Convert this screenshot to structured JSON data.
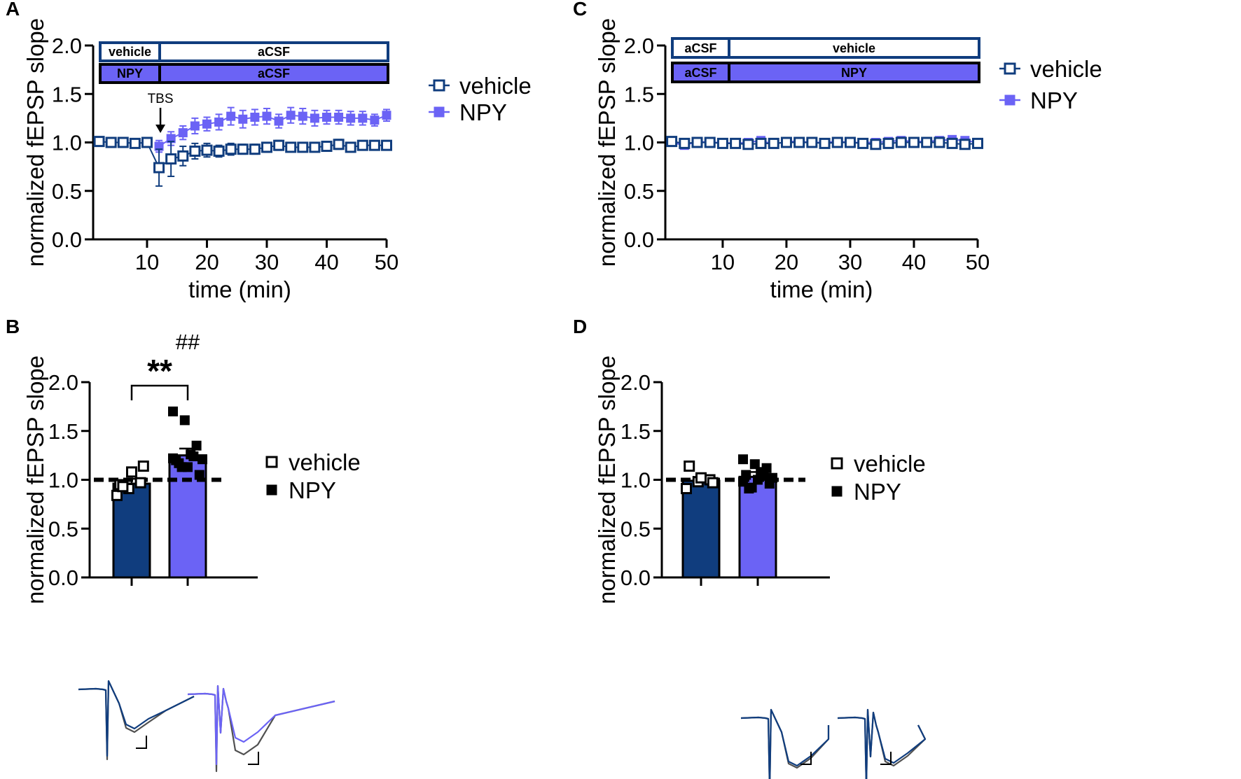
{
  "colors": {
    "vehicle": "#103d7e",
    "npy": "#6b63f5",
    "black": "#000000",
    "trace_grey": "#505050"
  },
  "chart_data": [
    {
      "id": "A",
      "panel_label": "A",
      "type": "line",
      "ylabel": "normalized fEPSP slope",
      "xlabel": "time (min)",
      "xlim": [
        1,
        50
      ],
      "ylim": [
        0,
        2.0
      ],
      "xticks": [
        10,
        20,
        30,
        40,
        50
      ],
      "yticks": [
        "0.0",
        "0.5",
        "1.0",
        "1.5",
        "2.0"
      ],
      "protocol_bars": [
        {
          "style": "open",
          "segments": [
            "vehicle",
            "aCSF"
          ]
        },
        {
          "style": "filled",
          "segments": [
            "NPY",
            "aCSF"
          ]
        }
      ],
      "protocol_split_x": 10.5,
      "annotation": {
        "text": "TBS",
        "x": 12
      },
      "legend": [
        "vehicle",
        "NPY"
      ],
      "series": [
        {
          "name": "vehicle",
          "marker": "open-square",
          "x": [
            2,
            4,
            6,
            8,
            10,
            12,
            14,
            16,
            18,
            20,
            22,
            24,
            26,
            28,
            30,
            32,
            34,
            36,
            38,
            40,
            42,
            44,
            46,
            48,
            50
          ],
          "y": [
            1.01,
            1.0,
            1.0,
            0.99,
            1.0,
            0.74,
            0.83,
            0.86,
            0.91,
            0.92,
            0.91,
            0.93,
            0.93,
            0.93,
            0.95,
            0.97,
            0.95,
            0.95,
            0.95,
            0.96,
            0.98,
            0.95,
            0.97,
            0.97,
            0.97
          ],
          "err": [
            0.02,
            0.02,
            0.02,
            0.02,
            0.02,
            0.19,
            0.18,
            0.1,
            0.08,
            0.07,
            0.06,
            0.06,
            0.05,
            0.05,
            0.05,
            0.05,
            0.04,
            0.04,
            0.04,
            0.04,
            0.05,
            0.04,
            0.04,
            0.04,
            0.04
          ]
        },
        {
          "name": "NPY",
          "marker": "filled-square",
          "x": [
            12,
            14,
            16,
            18,
            20,
            22,
            24,
            26,
            28,
            30,
            32,
            34,
            36,
            38,
            40,
            42,
            44,
            46,
            48,
            50
          ],
          "y": [
            0.96,
            1.04,
            1.1,
            1.17,
            1.19,
            1.21,
            1.27,
            1.24,
            1.26,
            1.27,
            1.22,
            1.28,
            1.27,
            1.25,
            1.26,
            1.26,
            1.25,
            1.25,
            1.23,
            1.28
          ],
          "err": [
            0.06,
            0.07,
            0.07,
            0.08,
            0.07,
            0.08,
            0.09,
            0.09,
            0.08,
            0.08,
            0.07,
            0.08,
            0.08,
            0.08,
            0.07,
            0.07,
            0.07,
            0.07,
            0.06,
            0.06
          ]
        }
      ]
    },
    {
      "id": "C",
      "panel_label": "C",
      "type": "line",
      "ylabel": "normalized fEPSP slope",
      "xlabel": "time (min)",
      "xlim": [
        1,
        50
      ],
      "ylim": [
        0,
        2.0
      ],
      "xticks": [
        10,
        20,
        30,
        40,
        50
      ],
      "yticks": [
        "0.0",
        "0.5",
        "1.0",
        "1.5",
        "2.0"
      ],
      "protocol_bars": [
        {
          "style": "open",
          "segments": [
            "aCSF",
            "vehicle"
          ]
        },
        {
          "style": "filled",
          "segments": [
            "aCSF",
            "NPY"
          ]
        }
      ],
      "protocol_split_x": 10.5,
      "legend": [
        "vehicle",
        "NPY"
      ],
      "series": [
        {
          "name": "vehicle",
          "marker": "open-square",
          "x": [
            2,
            4,
            6,
            8,
            10,
            12,
            14,
            16,
            18,
            20,
            22,
            24,
            26,
            28,
            30,
            32,
            34,
            36,
            38,
            40,
            42,
            44,
            46,
            48,
            50
          ],
          "y": [
            1.01,
            0.99,
            1.0,
            1.0,
            0.99,
            0.99,
            0.98,
            0.99,
            0.99,
            1.0,
            1.0,
            1.0,
            0.99,
            1.0,
            1.0,
            0.99,
            0.98,
            0.99,
            1.0,
            1.0,
            1.0,
            1.0,
            0.99,
            0.98,
            0.99
          ],
          "err": [
            0.02,
            0.02,
            0.02,
            0.02,
            0.02,
            0.02,
            0.02,
            0.02,
            0.02,
            0.02,
            0.02,
            0.02,
            0.02,
            0.02,
            0.02,
            0.02,
            0.02,
            0.02,
            0.02,
            0.02,
            0.02,
            0.02,
            0.02,
            0.02,
            0.02
          ]
        },
        {
          "name": "NPY",
          "marker": "filled-square",
          "x": [
            2,
            4,
            6,
            8,
            10,
            12,
            14,
            16,
            18,
            20,
            22,
            24,
            26,
            28,
            30,
            32,
            34,
            36,
            38,
            40,
            42,
            44,
            46,
            48,
            50
          ],
          "y": [
            1.0,
            0.97,
            1.01,
            1.0,
            1.0,
            0.99,
            1.0,
            1.02,
            0.98,
            1.01,
            1.01,
            1.0,
            1.0,
            1.01,
            1.0,
            1.0,
            1.0,
            1.01,
            1.02,
            1.01,
            1.01,
            1.02,
            1.03,
            1.02,
            1.0
          ],
          "err": [
            0.02,
            0.02,
            0.02,
            0.02,
            0.02,
            0.02,
            0.02,
            0.02,
            0.02,
            0.02,
            0.02,
            0.02,
            0.02,
            0.02,
            0.02,
            0.02,
            0.02,
            0.02,
            0.02,
            0.02,
            0.02,
            0.02,
            0.02,
            0.02,
            0.02
          ]
        }
      ]
    },
    {
      "id": "B",
      "panel_label": "B",
      "type": "bar",
      "ylabel": "normalized fEPSP slope",
      "ylim": [
        0,
        2.0
      ],
      "yticks": [
        "0.0",
        "0.5",
        "1.0",
        "1.5",
        "2.0"
      ],
      "categories": [
        "vehicle",
        "NPY"
      ],
      "values": [
        0.96,
        1.25
      ],
      "sem": [
        0.05,
        0.07
      ],
      "baseline": 1.0,
      "points": [
        [
          0.84,
          0.91,
          0.97,
          0.95,
          1.08,
          1.14,
          0.93
        ],
        [
          1.7,
          1.61,
          1.35,
          1.2,
          1.13,
          1.05,
          1.17,
          1.26,
          1.21,
          1.13,
          1.24,
          1.22
        ]
      ],
      "significance": {
        "text": "**"
      },
      "hash_label": "##",
      "legend": [
        "vehicle",
        "NPY"
      ]
    },
    {
      "id": "D",
      "panel_label": "D",
      "type": "bar",
      "ylabel": "normalized fEPSP slope",
      "ylim": [
        0,
        2.0
      ],
      "yticks": [
        "0.0",
        "0.5",
        "1.0",
        "1.5",
        "2.0"
      ],
      "categories": [
        "vehicle",
        "NPY"
      ],
      "values": [
        0.99,
        1.03
      ],
      "sem": [
        0.04,
        0.05
      ],
      "baseline": 1.0,
      "points": [
        [
          0.91,
          0.98,
          1.0,
          1.14,
          1.02,
          0.97
        ],
        [
          1.21,
          1.16,
          1.12,
          1.05,
          1.0,
          0.96,
          0.91,
          1.08,
          1.02,
          0.92,
          1.04,
          0.98
        ]
      ],
      "legend": [
        "vehicle",
        "NPY"
      ]
    }
  ]
}
